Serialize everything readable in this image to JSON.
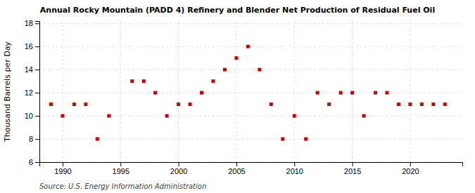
{
  "chart_data": {
    "type": "scatter",
    "title": "Annual Rocky Mountain (PADD 4) Refinery and Blender Net Production of Residual Fuel Oil",
    "y_label": "Thousand Barrels per Day",
    "annotations": [
      "Source: U.S. Energy Information Administration"
    ],
    "x": [
      1989,
      1990,
      1991,
      1992,
      1993,
      1994,
      1996,
      1997,
      1998,
      1999,
      2000,
      2001,
      2002,
      2003,
      2004,
      2005,
      2006,
      2007,
      2008,
      2009,
      2010,
      2011,
      2012,
      2013,
      2014,
      2015,
      2016,
      2017,
      2018,
      2019,
      2020,
      2021,
      2022,
      2023
    ],
    "values": [
      11,
      10,
      11,
      11,
      8,
      10,
      13,
      13,
      12,
      10,
      11,
      11,
      12,
      13,
      14,
      15,
      16,
      14,
      11,
      8,
      10,
      8,
      12,
      11,
      12,
      12,
      10,
      12,
      12,
      11,
      11,
      11,
      11,
      11
    ],
    "color": "#cc0000",
    "marker": "square",
    "xlim": [
      1988.0,
      2024.5
    ],
    "ylim": [
      6,
      18.2
    ],
    "xticks": [
      1990,
      1995,
      2000,
      2005,
      2010,
      2015,
      2020
    ],
    "yticks": [
      6,
      8,
      10,
      12,
      14,
      16,
      18
    ],
    "grid": true
  }
}
